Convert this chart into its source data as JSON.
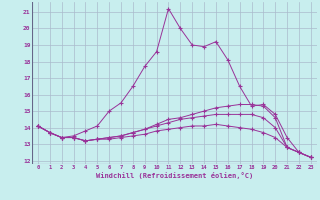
{
  "xlabel": "Windchill (Refroidissement éolien,°C)",
  "xlim": [
    -0.5,
    23.5
  ],
  "ylim": [
    11.8,
    21.6
  ],
  "xticks": [
    0,
    1,
    2,
    3,
    4,
    5,
    6,
    7,
    8,
    9,
    10,
    11,
    12,
    13,
    14,
    15,
    16,
    17,
    18,
    19,
    20,
    21,
    22,
    23
  ],
  "yticks": [
    12,
    13,
    14,
    15,
    16,
    17,
    18,
    19,
    20,
    21
  ],
  "bg_color": "#c8eeee",
  "grid_color": "#aabbcc",
  "line_color": "#993399",
  "lines": [
    [
      14.1,
      13.7,
      13.4,
      13.5,
      13.8,
      14.1,
      15.0,
      15.5,
      16.5,
      17.7,
      18.6,
      21.2,
      20.0,
      19.0,
      18.9,
      19.2,
      18.1,
      16.5,
      15.3,
      15.4,
      14.8,
      13.4,
      12.5,
      12.2
    ],
    [
      14.1,
      13.7,
      13.4,
      13.4,
      13.2,
      13.3,
      13.4,
      13.5,
      13.7,
      13.9,
      14.2,
      14.5,
      14.6,
      14.8,
      15.0,
      15.2,
      15.3,
      15.4,
      15.4,
      15.3,
      14.6,
      12.8,
      12.5,
      12.2
    ],
    [
      14.1,
      13.7,
      13.4,
      13.4,
      13.2,
      13.3,
      13.4,
      13.5,
      13.7,
      13.9,
      14.1,
      14.3,
      14.5,
      14.6,
      14.7,
      14.8,
      14.8,
      14.8,
      14.8,
      14.6,
      14.0,
      12.8,
      12.5,
      12.2
    ],
    [
      14.1,
      13.7,
      13.4,
      13.4,
      13.2,
      13.3,
      13.3,
      13.4,
      13.5,
      13.6,
      13.8,
      13.9,
      14.0,
      14.1,
      14.1,
      14.2,
      14.1,
      14.0,
      13.9,
      13.7,
      13.4,
      12.8,
      12.5,
      12.2
    ]
  ]
}
